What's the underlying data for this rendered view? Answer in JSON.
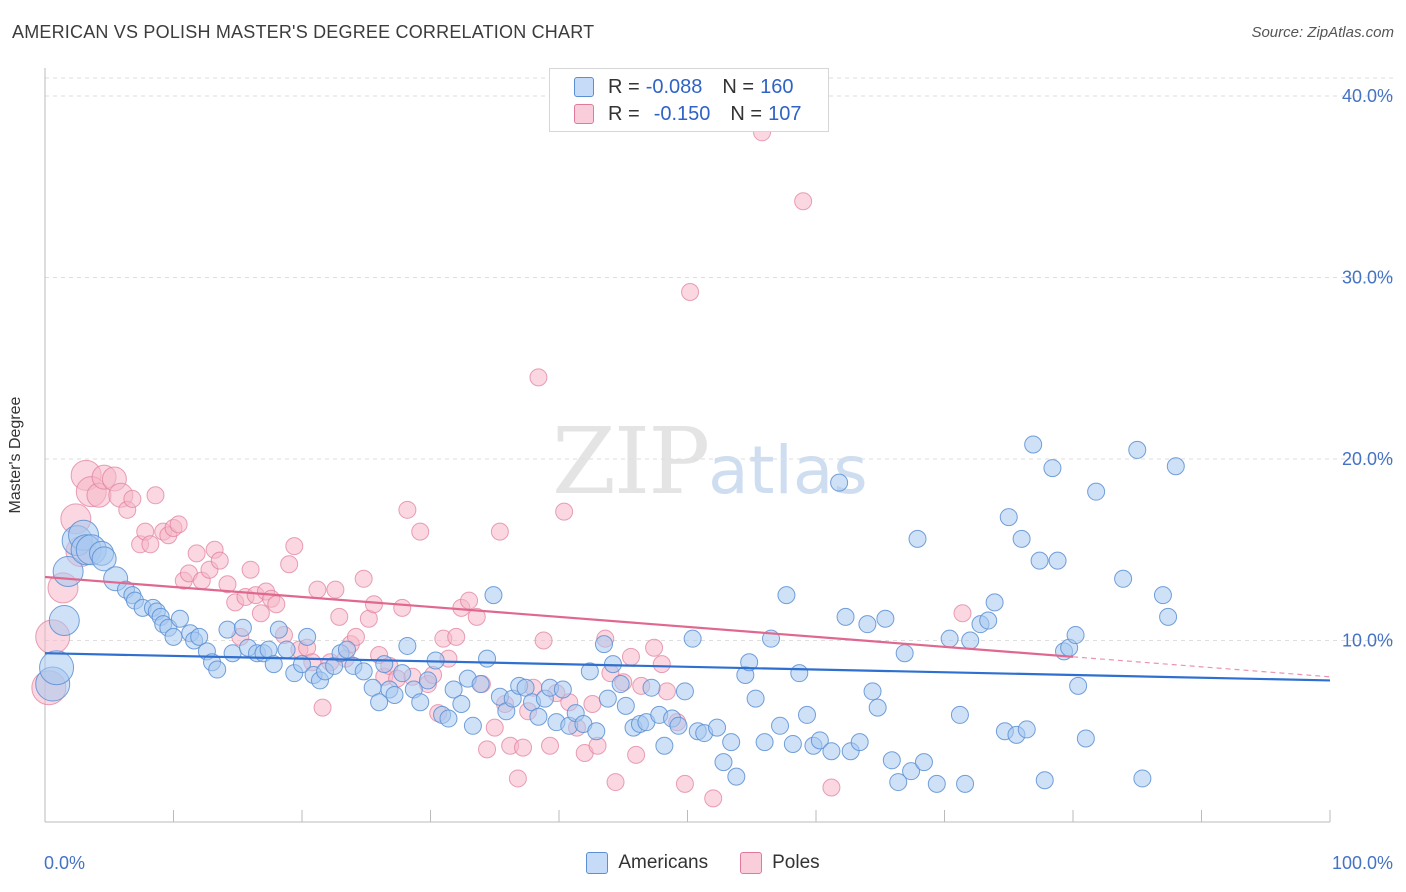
{
  "header": {
    "title": "AMERICAN VS POLISH MASTER'S DEGREE CORRELATION CHART",
    "source": "Source: ZipAtlas.com"
  },
  "watermark": {
    "zip": "ZIP",
    "atlas": "atlas"
  },
  "legend": {
    "rows": [
      {
        "r_label": "R =",
        "r_value": "-0.088",
        "n_label": "N =",
        "n_value": "160",
        "color": "#a8c8f0"
      },
      {
        "r_label": "R =",
        "r_value": "-0.150",
        "n_label": "N =",
        "n_value": "107",
        "color": "#f6b6c8"
      }
    ]
  },
  "bottom_legend": {
    "americans": "Americans",
    "poles": "Poles"
  },
  "colors": {
    "americans_fill": "#a8c8f0",
    "americans_stroke": "#5b8fd4",
    "americans_line": "#2f6fcf",
    "poles_fill": "#f6b6c8",
    "poles_stroke": "#e07a9a",
    "poles_line": "#e0688f",
    "tick_text": "#4472c4",
    "grid": "#dedede"
  },
  "chart_data": {
    "type": "scatter",
    "title": "AMERICAN VS POLISH MASTER'S DEGREE CORRELATION CHART",
    "xlabel": "",
    "ylabel": "Master's Degree",
    "xlim": [
      0,
      100
    ],
    "ylim": [
      0,
      40
    ],
    "y_ticks": [
      10,
      20,
      30,
      40
    ],
    "y_tick_labels": [
      "10.0%",
      "20.0%",
      "30.0%",
      "40.0%"
    ],
    "x_tick_labels": [
      "0.0%",
      "100.0%"
    ],
    "grid": true,
    "legend_position": "top-center",
    "series": [
      {
        "name": "Americans",
        "r": -0.088,
        "n": 160,
        "trend": {
          "x": [
            0,
            100
          ],
          "y": [
            9.3,
            7.8
          ]
        },
        "points": [
          [
            0.6,
            7.6
          ],
          [
            0.9,
            8.5
          ],
          [
            1.5,
            11.1
          ],
          [
            1.8,
            13.8
          ],
          [
            2.5,
            15.5
          ],
          [
            3,
            15.8
          ],
          [
            3.2,
            15
          ],
          [
            3.6,
            15
          ],
          [
            4.4,
            14.8
          ],
          [
            4.6,
            14.5
          ],
          [
            5.5,
            13.4
          ],
          [
            6.3,
            12.8
          ],
          [
            6.8,
            12.5
          ],
          [
            7,
            12.2
          ],
          [
            7.6,
            11.8
          ],
          [
            8.4,
            11.8
          ],
          [
            8.7,
            11.6
          ],
          [
            9,
            11.3
          ],
          [
            9.2,
            10.9
          ],
          [
            9.6,
            10.7
          ],
          [
            10,
            10.2
          ],
          [
            10.5,
            11.2
          ],
          [
            11.3,
            10.4
          ],
          [
            11.6,
            10
          ],
          [
            12,
            10.2
          ],
          [
            12.6,
            9.4
          ],
          [
            13,
            8.8
          ],
          [
            13.4,
            8.4
          ],
          [
            14.2,
            10.6
          ],
          [
            14.6,
            9.3
          ],
          [
            15.4,
            10.7
          ],
          [
            15.8,
            9.6
          ],
          [
            16.5,
            9.3
          ],
          [
            17,
            9.3
          ],
          [
            17.4,
            9.5
          ],
          [
            17.8,
            8.7
          ],
          [
            18.2,
            10.6
          ],
          [
            18.8,
            9.5
          ],
          [
            19.4,
            8.2
          ],
          [
            20,
            8.7
          ],
          [
            20.4,
            10.2
          ],
          [
            20.9,
            8.1
          ],
          [
            21.4,
            7.8
          ],
          [
            21.8,
            8.3
          ],
          [
            22.5,
            8.6
          ],
          [
            23,
            9.3
          ],
          [
            23.5,
            9.5
          ],
          [
            24,
            8.6
          ],
          [
            24.8,
            8.3
          ],
          [
            25.5,
            7.4
          ],
          [
            26,
            6.6
          ],
          [
            26.4,
            8.7
          ],
          [
            26.8,
            7.3
          ],
          [
            27.2,
            7
          ],
          [
            27.8,
            8.2
          ],
          [
            28.2,
            9.7
          ],
          [
            28.7,
            7.3
          ],
          [
            29.2,
            6.6
          ],
          [
            29.8,
            7.8
          ],
          [
            30.4,
            8.9
          ],
          [
            30.9,
            5.9
          ],
          [
            31.4,
            5.7
          ],
          [
            31.8,
            7.3
          ],
          [
            32.4,
            6.5
          ],
          [
            32.9,
            7.9
          ],
          [
            33.3,
            5.3
          ],
          [
            33.9,
            7.6
          ],
          [
            34.4,
            9
          ],
          [
            34.9,
            12.5
          ],
          [
            35.4,
            6.9
          ],
          [
            35.9,
            6.1
          ],
          [
            36.4,
            6.8
          ],
          [
            36.9,
            7.5
          ],
          [
            37.4,
            7.4
          ],
          [
            37.9,
            6.6
          ],
          [
            38.4,
            5.8
          ],
          [
            38.9,
            6.8
          ],
          [
            39.3,
            7.4
          ],
          [
            39.8,
            5.5
          ],
          [
            40.3,
            7.3
          ],
          [
            40.8,
            5.3
          ],
          [
            41.3,
            6
          ],
          [
            41.9,
            5.4
          ],
          [
            42.4,
            8.3
          ],
          [
            42.9,
            5
          ],
          [
            43.5,
            9.8
          ],
          [
            43.8,
            6.8
          ],
          [
            44.2,
            8.7
          ],
          [
            44.8,
            7.6
          ],
          [
            45.2,
            6.4
          ],
          [
            45.8,
            5.2
          ],
          [
            46.3,
            5.4
          ],
          [
            46.8,
            5.5
          ],
          [
            47.2,
            7.4
          ],
          [
            47.8,
            5.9
          ],
          [
            48.2,
            4.2
          ],
          [
            48.8,
            5.7
          ],
          [
            49.3,
            5.3
          ],
          [
            49.8,
            7.2
          ],
          [
            50.4,
            10.1
          ],
          [
            50.8,
            5
          ],
          [
            51.3,
            4.9
          ],
          [
            52.3,
            5.2
          ],
          [
            52.8,
            3.3
          ],
          [
            53.4,
            4.4
          ],
          [
            53.8,
            2.5
          ],
          [
            54.5,
            8.1
          ],
          [
            54.8,
            8.8
          ],
          [
            55.3,
            6.8
          ],
          [
            56,
            4.4
          ],
          [
            56.5,
            10.1
          ],
          [
            57.2,
            5.3
          ],
          [
            57.7,
            12.5
          ],
          [
            58.2,
            4.3
          ],
          [
            58.7,
            8.2
          ],
          [
            59.3,
            5.9
          ],
          [
            59.8,
            4.2
          ],
          [
            60.3,
            4.5
          ],
          [
            61.2,
            3.9
          ],
          [
            61.8,
            18.7
          ],
          [
            62.3,
            11.3
          ],
          [
            62.7,
            3.9
          ],
          [
            63.4,
            4.4
          ],
          [
            64,
            10.9
          ],
          [
            64.4,
            7.2
          ],
          [
            64.8,
            6.3
          ],
          [
            65.4,
            11.2
          ],
          [
            65.9,
            3.4
          ],
          [
            66.4,
            2.2
          ],
          [
            66.9,
            9.3
          ],
          [
            67.4,
            2.8
          ],
          [
            67.9,
            15.6
          ],
          [
            68.4,
            3.3
          ],
          [
            69.4,
            2.1
          ],
          [
            70.4,
            10.1
          ],
          [
            71.2,
            5.9
          ],
          [
            71.6,
            2.1
          ],
          [
            72,
            10
          ],
          [
            72.8,
            10.9
          ],
          [
            73.4,
            11.1
          ],
          [
            73.9,
            12.1
          ],
          [
            74.7,
            5
          ],
          [
            75,
            16.8
          ],
          [
            75.6,
            4.8
          ],
          [
            76,
            15.6
          ],
          [
            76.4,
            5.1
          ],
          [
            76.9,
            20.8
          ],
          [
            77.4,
            14.4
          ],
          [
            77.8,
            2.3
          ],
          [
            78.4,
            19.5
          ],
          [
            78.8,
            14.4
          ],
          [
            79.3,
            9.4
          ],
          [
            79.7,
            9.6
          ],
          [
            80.2,
            10.3
          ],
          [
            80.4,
            7.5
          ],
          [
            81,
            4.6
          ],
          [
            81.8,
            18.2
          ],
          [
            83.9,
            13.4
          ],
          [
            85,
            20.5
          ],
          [
            85.4,
            2.4
          ],
          [
            87,
            12.5
          ],
          [
            87.4,
            11.3
          ],
          [
            88,
            19.6
          ]
        ]
      },
      {
        "name": "Poles",
        "r": -0.15,
        "n": 107,
        "trend": {
          "x": [
            0,
            80
          ],
          "y": [
            13.5,
            9.1
          ]
        },
        "trend_extension": {
          "x": [
            80,
            100
          ],
          "y": [
            9.1,
            8
          ]
        },
        "points": [
          [
            0.3,
            7.4
          ],
          [
            0.6,
            10.2
          ],
          [
            1.4,
            12.9
          ],
          [
            2.4,
            16.7
          ],
          [
            2.8,
            14.9
          ],
          [
            3.2,
            19.1
          ],
          [
            3.6,
            18.2
          ],
          [
            4.2,
            18
          ],
          [
            4.6,
            19
          ],
          [
            5.4,
            18.9
          ],
          [
            5.9,
            18
          ],
          [
            6.4,
            17.2
          ],
          [
            6.8,
            17.8
          ],
          [
            7.4,
            15.3
          ],
          [
            7.8,
            16
          ],
          [
            8.2,
            15.3
          ],
          [
            8.6,
            18
          ],
          [
            9.2,
            16
          ],
          [
            9.6,
            15.8
          ],
          [
            10,
            16.2
          ],
          [
            10.4,
            16.4
          ],
          [
            10.8,
            13.3
          ],
          [
            11.2,
            13.7
          ],
          [
            11.8,
            14.8
          ],
          [
            12.2,
            13.3
          ],
          [
            12.8,
            13.9
          ],
          [
            13.2,
            15
          ],
          [
            13.6,
            14.4
          ],
          [
            14.2,
            13.1
          ],
          [
            14.8,
            12.1
          ],
          [
            15.2,
            10.2
          ],
          [
            15.6,
            12.4
          ],
          [
            16,
            13.9
          ],
          [
            16.4,
            12.5
          ],
          [
            16.8,
            11.5
          ],
          [
            17.2,
            12.7
          ],
          [
            17.6,
            12.3
          ],
          [
            18,
            12
          ],
          [
            18.6,
            10.3
          ],
          [
            19,
            14.2
          ],
          [
            19.4,
            15.2
          ],
          [
            19.8,
            9.5
          ],
          [
            20.4,
            9.6
          ],
          [
            20.8,
            8.8
          ],
          [
            21.2,
            12.8
          ],
          [
            21.6,
            6.3
          ],
          [
            22.2,
            8.8
          ],
          [
            22.6,
            12.8
          ],
          [
            22.9,
            11.3
          ],
          [
            23.4,
            9
          ],
          [
            23.8,
            9.8
          ],
          [
            24.2,
            10.2
          ],
          [
            24.8,
            13.4
          ],
          [
            25.2,
            11.2
          ],
          [
            25.6,
            12
          ],
          [
            26,
            9.2
          ],
          [
            26.4,
            8
          ],
          [
            26.8,
            8.6
          ],
          [
            27.4,
            7.9
          ],
          [
            27.8,
            11.8
          ],
          [
            28.2,
            17.2
          ],
          [
            28.6,
            8
          ],
          [
            29.2,
            16
          ],
          [
            29.8,
            7.6
          ],
          [
            30.2,
            8.1
          ],
          [
            30.6,
            6
          ],
          [
            31,
            10.1
          ],
          [
            31.4,
            9
          ],
          [
            32,
            10.2
          ],
          [
            32.4,
            11.8
          ],
          [
            33,
            12.2
          ],
          [
            33.6,
            11.3
          ],
          [
            34,
            7.6
          ],
          [
            34.4,
            4
          ],
          [
            35,
            5.2
          ],
          [
            35.4,
            16
          ],
          [
            35.8,
            6.5
          ],
          [
            36.2,
            4.2
          ],
          [
            36.8,
            2.4
          ],
          [
            37.2,
            4.1
          ],
          [
            37.6,
            6.1
          ],
          [
            38,
            7.4
          ],
          [
            38.4,
            24.5
          ],
          [
            38.8,
            10
          ],
          [
            39.3,
            4.2
          ],
          [
            39.8,
            7.1
          ],
          [
            40.4,
            17.1
          ],
          [
            40.8,
            6.6
          ],
          [
            41.4,
            5.2
          ],
          [
            42,
            3.8
          ],
          [
            42.6,
            6.5
          ],
          [
            43,
            4.2
          ],
          [
            43.6,
            10.1
          ],
          [
            44,
            8.2
          ],
          [
            44.4,
            2.2
          ],
          [
            45,
            7.7
          ],
          [
            45.6,
            9.1
          ],
          [
            46,
            3.7
          ],
          [
            46.4,
            7.5
          ],
          [
            47.4,
            9.6
          ],
          [
            48,
            8.7
          ],
          [
            48.4,
            7.2
          ],
          [
            49.2,
            5.5
          ],
          [
            49.8,
            2.1
          ],
          [
            50.2,
            29.2
          ],
          [
            52,
            1.3
          ],
          [
            55.8,
            38
          ],
          [
            59,
            34.2
          ],
          [
            61.2,
            1.9
          ],
          [
            71.4,
            11.5
          ]
        ]
      }
    ]
  }
}
